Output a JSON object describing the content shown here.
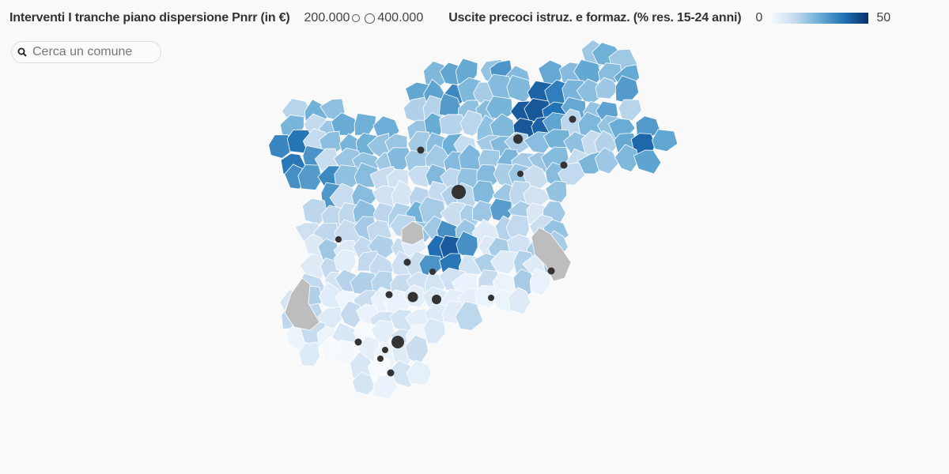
{
  "legend": {
    "size_title": "Interventi I tranche piano dispersione Pnrr (in €)",
    "size_min_label": "200.000",
    "size_max_label": "400.000",
    "color_title": "Uscite precoci istruz. e formaz. (% res. 15-24 anni)",
    "color_min_label": "0",
    "color_max_label": "50"
  },
  "search": {
    "placeholder": "Cerca un comune",
    "value": ""
  },
  "colors": {
    "ramp": [
      "#f7fbff",
      "#c6dbef",
      "#6baed6",
      "#2171b5",
      "#08306b"
    ],
    "no_data": "#bdbdbd",
    "dot": "#333333",
    "background": "#f9f9f9"
  },
  "icons": {
    "search": "search-icon",
    "size_small": "circle-outline-icon",
    "size_large": "circle-outline-icon"
  }
}
